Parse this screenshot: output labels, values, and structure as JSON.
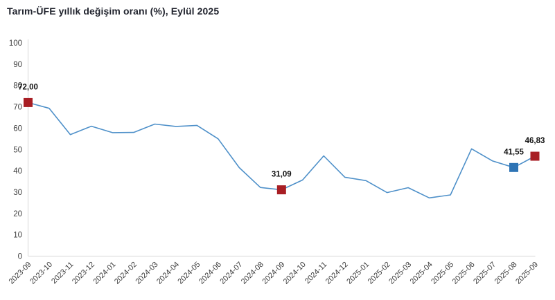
{
  "title": "Tarım-ÜFE yıllık değişim oranı (%), Eylül 2025",
  "colors": {
    "line": "#4e90c9",
    "marker_red": "#a81e24",
    "marker_blue": "#2e74b5",
    "axis_line": "#d6d6d6",
    "ytick_text": "#3f3f3f",
    "xtick_text": "#3a3a3a",
    "title_text": "#21242e",
    "point_label_text": "#111111"
  },
  "chart_data": {
    "type": "line",
    "title": "Tarım-ÜFE yıllık değişim oranı (%), Eylül 2025",
    "xlabel": "",
    "ylabel": "",
    "ylim": [
      0,
      100
    ],
    "ytick_step": 10,
    "grid": false,
    "legend": "none",
    "x": [
      "2023-09",
      "2023-10",
      "2023-11",
      "2023-12",
      "2024-01",
      "2024-02",
      "2024-03",
      "2024-04",
      "2024-05",
      "2024-06",
      "2024-07",
      "2024-08",
      "2024-09",
      "2024-10",
      "2024-11",
      "2024-12",
      "2025-01",
      "2025-02",
      "2025-03",
      "2025-04",
      "2025-05",
      "2025-06",
      "2025-07",
      "2025-08",
      "2025-09"
    ],
    "values": [
      72.0,
      69.3,
      57.0,
      60.9,
      57.9,
      58.0,
      61.9,
      60.8,
      61.3,
      55.0,
      41.5,
      32.2,
      31.09,
      35.7,
      47.0,
      37.0,
      35.4,
      29.8,
      32.1,
      27.3,
      28.7,
      50.3,
      44.6,
      41.55,
      46.83
    ],
    "annotations": [
      {
        "x": "2023-09",
        "value": 72.0,
        "label": "72,00",
        "marker": "red"
      },
      {
        "x": "2024-09",
        "value": 31.09,
        "label": "31,09",
        "marker": "red"
      },
      {
        "x": "2025-08",
        "value": 41.55,
        "label": "41,55",
        "marker": "blue"
      },
      {
        "x": "2025-09",
        "value": 46.83,
        "label": "46,83",
        "marker": "red"
      }
    ]
  }
}
